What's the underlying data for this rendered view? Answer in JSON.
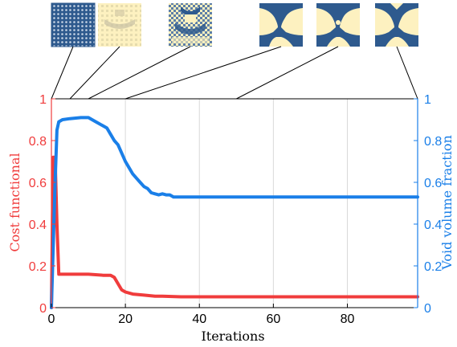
{
  "chart_data": {
    "type": "line",
    "xlabel": "Iterations",
    "ylabel_left": "Cost functional",
    "ylabel_right": "Void  volume fraction",
    "xlim": [
      0,
      99
    ],
    "ylim_left": [
      0,
      1
    ],
    "ylim_right": [
      0,
      1
    ],
    "x_ticks": [
      0,
      20,
      40,
      60,
      80
    ],
    "y_ticks_left": [
      0,
      0.2,
      0.4,
      0.6,
      0.8,
      1
    ],
    "y_ticks_right": [
      0,
      0.2,
      0.4,
      0.6,
      0.8,
      1
    ],
    "x_tick_labels": [
      "0",
      "20",
      "40",
      "60",
      "80"
    ],
    "y_tick_labels_left": [
      "0",
      "0.2",
      "0.4",
      "0.6",
      "0.8",
      "1"
    ],
    "y_tick_labels_right": [
      "0",
      "0.2",
      "0.4",
      "0.6",
      "0.8",
      "1"
    ],
    "grid": "vertical",
    "series": [
      {
        "axis": "left",
        "color": "#f03c3c",
        "x": [
          0,
          0.5,
          1,
          1.5,
          2,
          3,
          5,
          10,
          14,
          16,
          17,
          18,
          19,
          20,
          22,
          25,
          28,
          30,
          35,
          40,
          50,
          60,
          70,
          80,
          90,
          99
        ],
        "y": [
          0,
          0.72,
          0.72,
          0.4,
          0.16,
          0.16,
          0.16,
          0.16,
          0.155,
          0.155,
          0.145,
          0.115,
          0.085,
          0.075,
          0.065,
          0.06,
          0.055,
          0.055,
          0.052,
          0.052,
          0.052,
          0.052,
          0.052,
          0.052,
          0.052,
          0.052
        ]
      },
      {
        "axis": "right",
        "color": "#1a7fe8",
        "x": [
          0,
          0.5,
          1,
          1.5,
          2,
          3,
          5,
          8,
          10,
          12,
          14,
          15,
          16,
          17,
          18,
          19,
          20,
          21,
          22,
          23,
          24,
          25,
          26,
          27,
          28,
          29,
          30,
          31,
          32,
          33,
          35,
          40,
          50,
          60,
          70,
          80,
          90,
          99
        ],
        "y": [
          0,
          0.3,
          0.6,
          0.85,
          0.89,
          0.9,
          0.905,
          0.91,
          0.91,
          0.89,
          0.87,
          0.86,
          0.83,
          0.8,
          0.78,
          0.74,
          0.7,
          0.67,
          0.64,
          0.62,
          0.6,
          0.58,
          0.57,
          0.55,
          0.545,
          0.54,
          0.545,
          0.54,
          0.54,
          0.53,
          0.53,
          0.53,
          0.53,
          0.53,
          0.53,
          0.53,
          0.53,
          0.53
        ]
      }
    ],
    "insets": [
      {
        "iteration": 0,
        "pattern": "checkerboard"
      },
      {
        "iteration": 5,
        "pattern": "faded-checkerboard"
      },
      {
        "iteration": 10,
        "pattern": "emerging-structure"
      },
      {
        "iteration": 20,
        "pattern": "formed-structure"
      },
      {
        "iteration": 50,
        "pattern": "refined-structure"
      },
      {
        "iteration": 99,
        "pattern": "final-structure"
      }
    ],
    "inset_colors": {
      "solid": "#2e5a8e",
      "void": "#fdf1c0"
    }
  }
}
